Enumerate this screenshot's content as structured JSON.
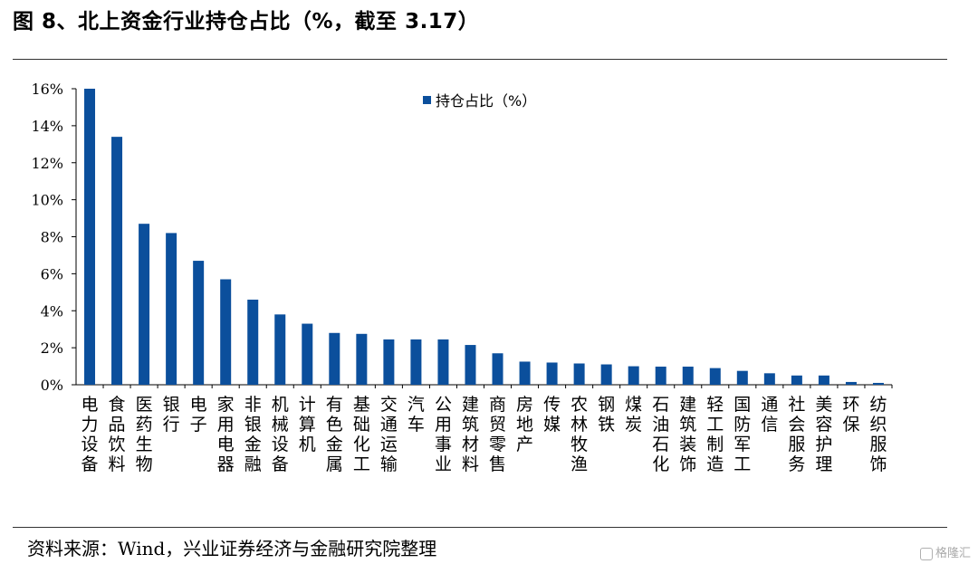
{
  "header": {
    "title": "图 8、北上资金行业持仓占比（%，截至 3.17）"
  },
  "footer": {
    "source": "资料来源：Wind，兴业证券经济与金融研究院整理",
    "watermark": "格隆汇"
  },
  "colors": {
    "bar": "#0b4f9c",
    "axis": "#000000"
  },
  "chart_data": {
    "type": "bar",
    "title": "",
    "xlabel": "",
    "ylabel": "",
    "ylim": [
      0,
      16
    ],
    "yticks": [
      "0%",
      "2%",
      "4%",
      "6%",
      "8%",
      "10%",
      "12%",
      "14%",
      "16%"
    ],
    "grid": false,
    "legend_position": "top-center",
    "categories": [
      "电力设备",
      "食品饮料",
      "医药生物",
      "银行",
      "电子",
      "家用电器",
      "非银金融",
      "机械设备",
      "计算机",
      "有色金属",
      "基础化工",
      "交通运输",
      "汽车",
      "公用事业",
      "建筑材料",
      "商贸零售",
      "房地产",
      "传媒",
      "农林牧渔",
      "钢铁",
      "煤炭",
      "石油石化",
      "建筑装饰",
      "轻工制造",
      "国防军工",
      "通信",
      "社会服务",
      "美容护理",
      "环保",
      "纺织服饰"
    ],
    "series": [
      {
        "name": "持仓占比（%）",
        "values": [
          16.0,
          13.4,
          8.7,
          8.2,
          6.7,
          5.7,
          4.6,
          3.8,
          3.3,
          2.8,
          2.75,
          2.45,
          2.45,
          2.45,
          2.15,
          1.7,
          1.25,
          1.2,
          1.15,
          1.1,
          1.0,
          0.98,
          0.98,
          0.9,
          0.75,
          0.62,
          0.5,
          0.5,
          0.15,
          0.1
        ]
      }
    ]
  }
}
